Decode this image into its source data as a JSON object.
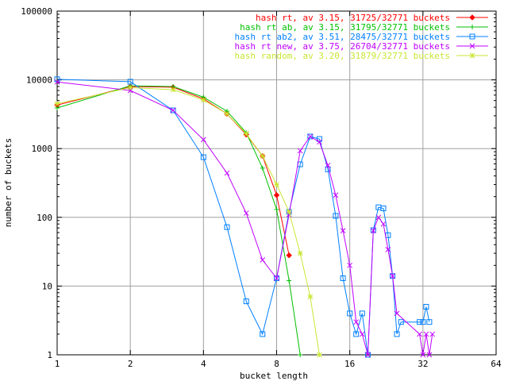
{
  "chart_data": {
    "type": "line",
    "title": "",
    "xlabel": "bucket length",
    "ylabel": "number of buckets",
    "xscale": "log2",
    "yscale": "log10",
    "xlim": [
      1,
      64
    ],
    "ylim": [
      1,
      100000
    ],
    "grid": true,
    "legend_position": "top-right",
    "x_ticks": [
      {
        "value": 1,
        "label": "1"
      },
      {
        "value": 2,
        "label": "2"
      },
      {
        "value": 4,
        "label": "4"
      },
      {
        "value": 8,
        "label": "8"
      },
      {
        "value": 16,
        "label": "16"
      },
      {
        "value": 32,
        "label": "32"
      },
      {
        "value": 64,
        "label": "64"
      }
    ],
    "y_ticks": [
      {
        "value": 1,
        "label": "1"
      },
      {
        "value": 10,
        "label": "10"
      },
      {
        "value": 100,
        "label": "100"
      },
      {
        "value": 1000,
        "label": "1000"
      },
      {
        "value": 10000,
        "label": "10000"
      },
      {
        "value": 100000,
        "label": "100000"
      }
    ],
    "series": [
      {
        "name": "hash rt, av 3.15, 31725/32771 buckets",
        "color": "#ff0000",
        "marker": "diamond",
        "x": [
          1,
          2,
          3,
          4,
          5,
          6,
          7,
          8,
          9
        ],
        "y": [
          4300,
          8000,
          7800,
          5300,
          3200,
          1600,
          780,
          210,
          28
        ]
      },
      {
        "name": "hash rt ab, av 3.15, 31795/32771 buckets",
        "color": "#00c000",
        "marker": "plus",
        "x": [
          1,
          2,
          3,
          4,
          5,
          6,
          7,
          8,
          9,
          10
        ],
        "y": [
          3900,
          8200,
          8000,
          5600,
          3500,
          1700,
          520,
          130,
          12,
          1
        ]
      },
      {
        "name": "hash rt ab2, av 3.51, 28475/32771 buckets",
        "color": "#0080ff",
        "marker": "square",
        "x": [
          1,
          2,
          3,
          4,
          5,
          6,
          7,
          8,
          9,
          10,
          11,
          12,
          13,
          14,
          15,
          16,
          17,
          18,
          19,
          20,
          21,
          22,
          23,
          24,
          25,
          26,
          31,
          32,
          33,
          34
        ],
        "y": [
          10200,
          9400,
          3600,
          750,
          72,
          6,
          2,
          13,
          120,
          590,
          1500,
          1380,
          500,
          105,
          13,
          4,
          2,
          4,
          1,
          65,
          140,
          135,
          55,
          14,
          2,
          3,
          3,
          3,
          5,
          3
        ]
      },
      {
        "name": "hash rt new, av 3.75, 26704/32771 buckets",
        "color": "#c000ff",
        "marker": "cross",
        "x": [
          1,
          2,
          3,
          4,
          5,
          6,
          7,
          8,
          9,
          10,
          11,
          12,
          13,
          14,
          15,
          16,
          17,
          18,
          19,
          20,
          21,
          22,
          23,
          24,
          25,
          31,
          32,
          33,
          34,
          35
        ],
        "y": [
          9300,
          7000,
          3600,
          1350,
          440,
          115,
          24,
          13,
          110,
          930,
          1500,
          1250,
          570,
          210,
          64,
          20,
          3,
          2,
          1,
          64,
          100,
          80,
          34,
          14,
          4,
          2,
          1,
          2,
          1,
          2
        ]
      },
      {
        "name": "hash random, av 3.20, 31879/32771 buckets",
        "color": "#c8e632",
        "marker": "star",
        "x": [
          1,
          2,
          3,
          4,
          5,
          6,
          7,
          8,
          9,
          10,
          11,
          12
        ],
        "y": [
          4500,
          7700,
          7200,
          5100,
          3200,
          1650,
          780,
          300,
          120,
          30,
          7,
          1
        ]
      }
    ]
  }
}
